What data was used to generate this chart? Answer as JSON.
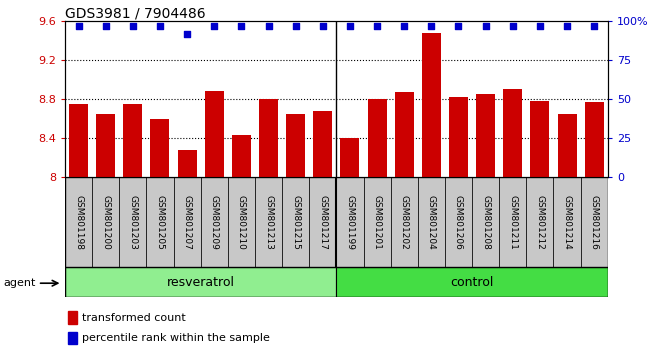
{
  "title": "GDS3981 / 7904486",
  "categories": [
    "GSM801198",
    "GSM801200",
    "GSM801203",
    "GSM801205",
    "GSM801207",
    "GSM801209",
    "GSM801210",
    "GSM801213",
    "GSM801215",
    "GSM801217",
    "GSM801199",
    "GSM801201",
    "GSM801202",
    "GSM801204",
    "GSM801206",
    "GSM801208",
    "GSM801211",
    "GSM801212",
    "GSM801214",
    "GSM801216"
  ],
  "bar_values": [
    8.75,
    8.65,
    8.75,
    8.6,
    8.28,
    8.88,
    8.43,
    8.8,
    8.65,
    8.68,
    8.4,
    8.8,
    8.87,
    9.48,
    8.82,
    8.85,
    8.9,
    8.78,
    8.65,
    8.77
  ],
  "percentile_values": [
    97,
    97,
    97,
    97,
    92,
    97,
    97,
    97,
    97,
    97,
    97,
    97,
    97,
    97,
    97,
    97,
    97,
    97,
    97,
    97
  ],
  "bar_color": "#cc0000",
  "percentile_color": "#0000cc",
  "resveratrol_count": 10,
  "control_count": 10,
  "ylim": [
    8.0,
    9.6
  ],
  "yticks": [
    8.0,
    8.4,
    8.8,
    9.2,
    9.6
  ],
  "right_yticks": [
    0,
    25,
    50,
    75,
    100
  ],
  "right_ytick_labels": [
    "0",
    "25",
    "50",
    "75",
    "100%"
  ],
  "grid_values": [
    8.4,
    8.8,
    9.2
  ],
  "plot_bg_color": "#ffffff",
  "tick_box_color": "#c8c8c8",
  "resveratrol_color": "#90ee90",
  "control_color": "#44dd44",
  "legend_items": [
    "transformed count",
    "percentile rank within the sample"
  ]
}
